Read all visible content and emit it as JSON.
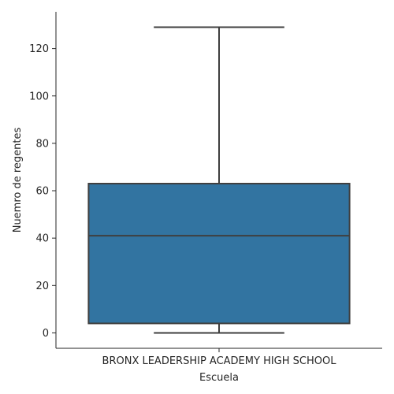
{
  "chart_data": {
    "type": "box",
    "title": "",
    "xlabel": "Escuela",
    "ylabel": "Nuemro de regentes",
    "categories": [
      "BRONX LEADERSHIP ACADEMY HIGH SCHOOL"
    ],
    "boxes": [
      {
        "category": "BRONX LEADERSHIP ACADEMY HIGH SCHOOL",
        "whisker_low": 0,
        "q1": 4,
        "median": 41,
        "q3": 63,
        "whisker_high": 129
      }
    ],
    "ylim": [
      -6.5,
      135.5
    ],
    "yticks": [
      0,
      20,
      40,
      60,
      80,
      100,
      120
    ],
    "grid": false,
    "legend": "none",
    "colors": {
      "box_fill": "#3274a1",
      "line": "#3f3f3f",
      "axis": "#262626"
    }
  }
}
